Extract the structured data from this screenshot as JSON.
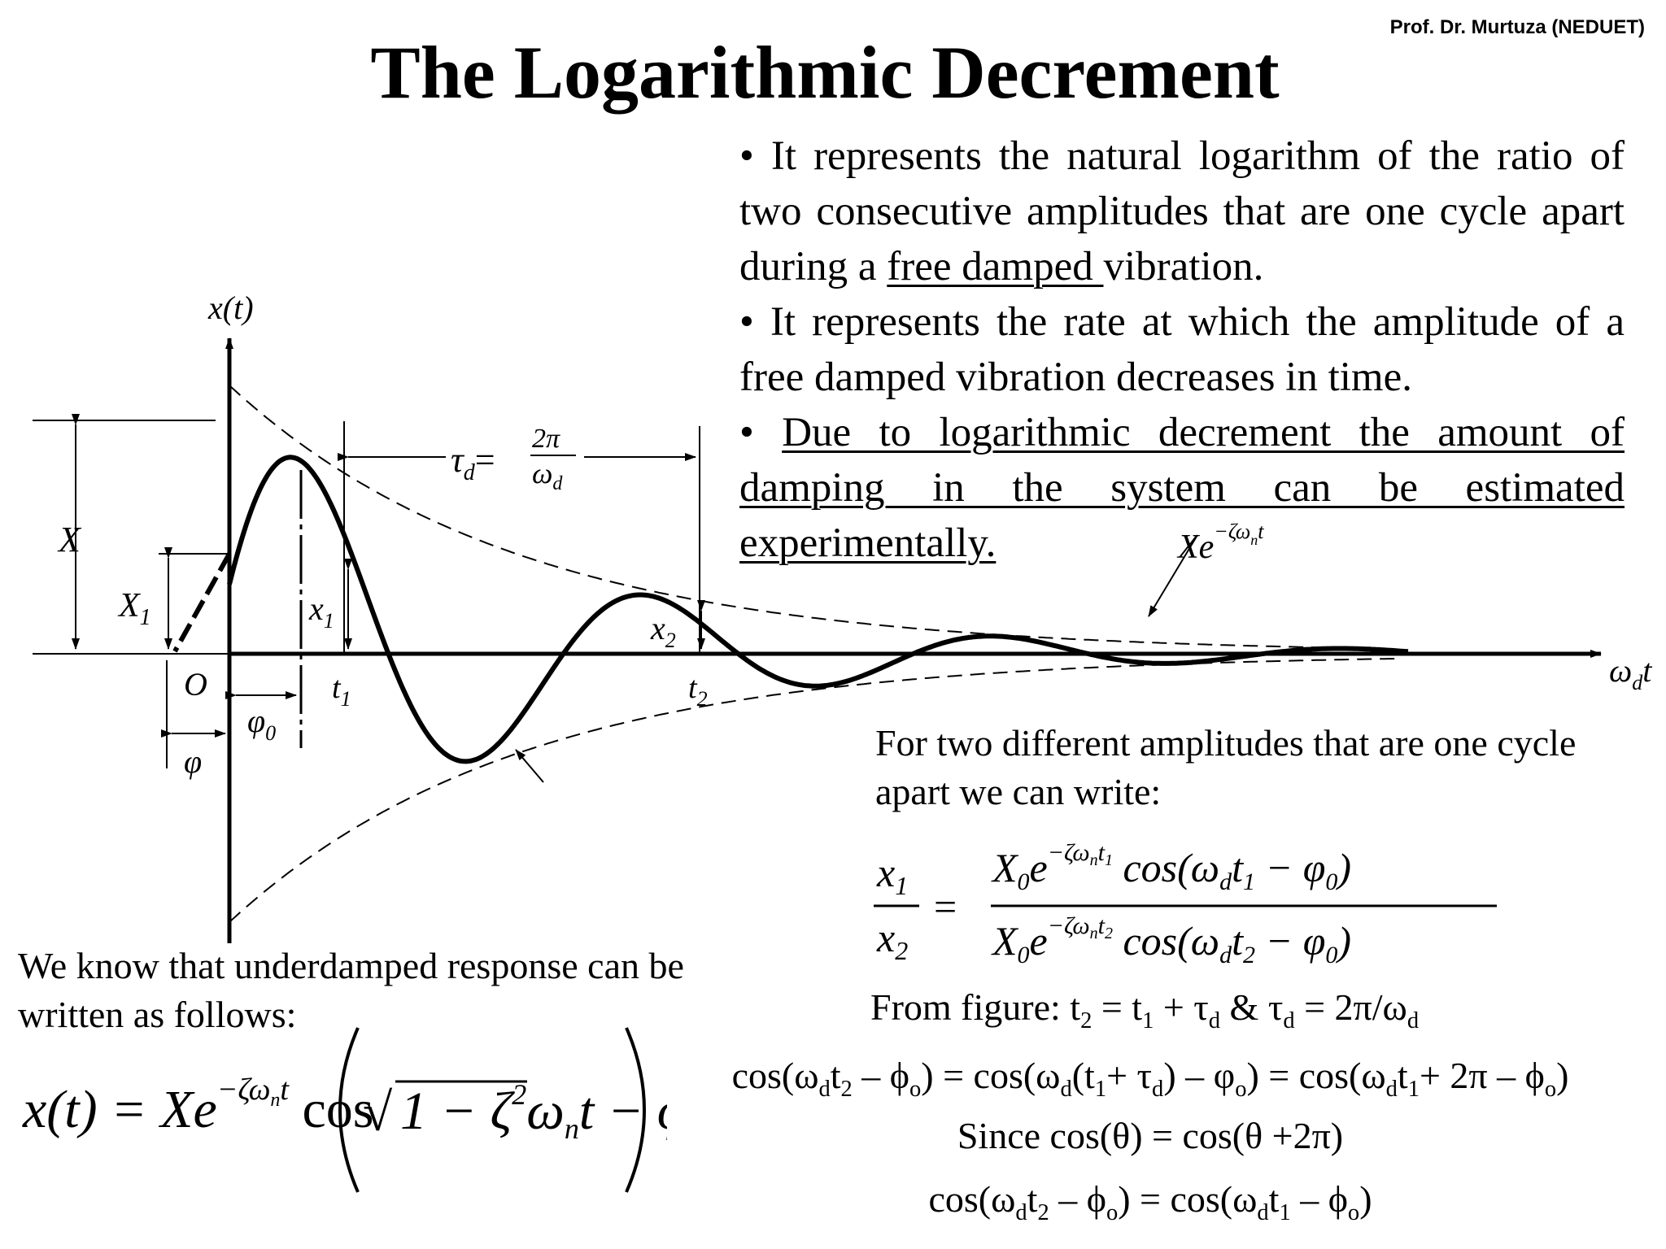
{
  "slide": {
    "title": "The Logarithmic Decrement",
    "attribution": "Prof. Dr. Murtuza (NEDUET)"
  },
  "bullets": {
    "b1_a": "It represents the natural logarithm of the ratio of two consecutive amplitudes that are one cycle apart during a ",
    "b1_u": "free damped ",
    "b1_b": "vibration.",
    "b2": "It represents the rate at which the amplitude of a free damped vibration decreases in time.",
    "b3": "Due to logarithmic decrement the amount of damping in the system can be estimated experimentally."
  },
  "figure": {
    "y_axis": "x(t)",
    "x_axis_w": "ω",
    "x_axis_d": "d",
    "x_axis_t": "t",
    "X": "X",
    "X1": "X",
    "X1_sub": "1",
    "x1": "x",
    "x1_sub": "1",
    "x2": "x",
    "x2_sub": "2",
    "O": "O",
    "t1": "t",
    "t1_sub": "1",
    "t2": "t",
    "t2_sub": "2",
    "phi0": "φ",
    "phi0_sub": "0",
    "phi": "φ",
    "tau_lhs": "τ",
    "tau_sub": "d",
    "eq": "=",
    "two_pi": "2π",
    "omega_d": "ω",
    "omega_d_sub": "d",
    "envelope_X": "Xe",
    "envelope_exp": "−ζω",
    "envelope_exp_n": "n",
    "envelope_exp_t": "t"
  },
  "left": {
    "intro": "We know that underdamped response can be written as follows:",
    "eq_lhs": "x(t) = Xe",
    "eq_exp": "−ζω",
    "eq_exp_n": "n",
    "eq_exp_t": "t",
    "eq_cos": "cos",
    "eq_sqrt": "√",
    "eq_rad_a": "1 − ζ",
    "eq_rad_sq": "2",
    "eq_after": "ω",
    "eq_after_n": "n",
    "eq_after_t": "t − φ"
  },
  "right": {
    "intro": "For two different amplitudes that are one cycle apart we can write:",
    "ratio_x1": "x",
    "ratio_x1_sub": "1",
    "ratio_x2": "x",
    "ratio_x2_sub": "2",
    "ratio_eq": "=",
    "num_a": "X",
    "num_a_sub": "0",
    "num_e": "e",
    "num_exp": "−ζω",
    "num_exp_n": "n",
    "num_exp_t": "t",
    "num_exp_t_sub": "1",
    "num_cos": "cos(ω",
    "num_cos_d": "d",
    "num_cos_t": "t",
    "num_cos_t_sub": "1",
    "num_cos_end": " − φ",
    "num_cos_end_sub": "0",
    "num_close": ")",
    "den_a": "X",
    "den_a_sub": "0",
    "den_e": "e",
    "den_exp": "−ζω",
    "den_exp_n": "n",
    "den_exp_t": "t",
    "den_exp_t_sub": "2",
    "den_cos": "cos(ω",
    "den_cos_d": "d",
    "den_cos_t": "t",
    "den_cos_t_sub": "2",
    "den_cos_end": " − φ",
    "den_cos_end_sub": "0",
    "den_close": ")"
  },
  "lines": {
    "from_fig": "From figure:  t",
    "from_fig_s1": "2",
    "from_fig_m1": " = t",
    "from_fig_s2": "1",
    "from_fig_m2": " + τ",
    "from_fig_s3": "d",
    "from_fig_m3": " & τ",
    "from_fig_s4": "d",
    "from_fig_m4": " = 2π/ω",
    "from_fig_s5": "d",
    "cos1_a": "cos(ω",
    "cos1_s1": "d",
    "cos1_b": "t",
    "cos1_s2": "2",
    "cos1_c": " – ϕ",
    "cos1_s3": "o",
    "cos1_d": ") = cos(ω",
    "cos1_s4": "d",
    "cos1_e": "(t",
    "cos1_s5": "1",
    "cos1_f": "+ τ",
    "cos1_s6": "d",
    "cos1_g": ") – φ",
    "cos1_s7": "o",
    "cos1_h": ") = cos(ω",
    "cos1_s8": "d",
    "cos1_i": "t",
    "cos1_s9": "1",
    "cos1_j": "+ 2π – ϕ",
    "cos1_s10": "o",
    "cos1_k": ")",
    "since": "Since cos(θ) = cos(θ +2π)",
    "cos2_a": "cos(ω",
    "cos2_s1": "d",
    "cos2_b": "t",
    "cos2_s2": "2",
    "cos2_c": " – ϕ",
    "cos2_s3": "o",
    "cos2_d": ") = cos(ω",
    "cos2_s4": "d",
    "cos2_e": "t",
    "cos2_s5": "1",
    "cos2_f": " – ϕ",
    "cos2_s6": "o",
    "cos2_g": ")"
  }
}
